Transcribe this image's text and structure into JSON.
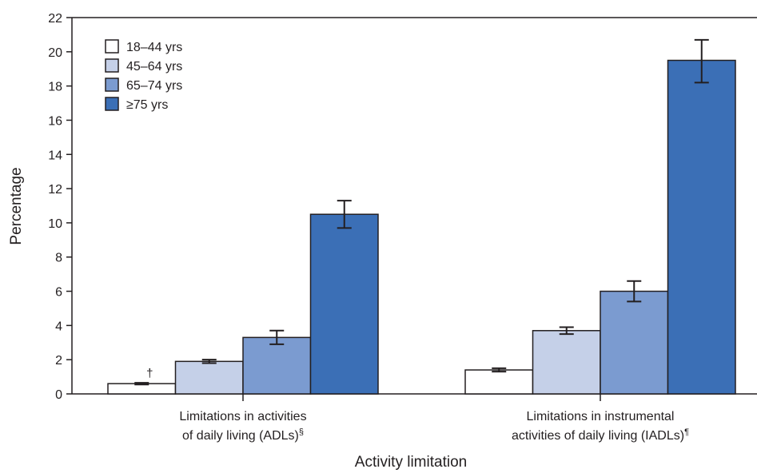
{
  "chart_data": {
    "type": "bar",
    "xlabel": "Activity limitation",
    "ylabel": "Percentage",
    "ylim": [
      0,
      22
    ],
    "yticks": [
      0,
      2,
      4,
      6,
      8,
      10,
      12,
      14,
      16,
      18,
      20,
      22
    ],
    "grid": false,
    "legend_position": "top-left",
    "categories": [
      {
        "line1": "Limitations in activities",
        "line2": "of daily living (ADLs)",
        "mark": "§"
      },
      {
        "line1": "Limitations in instrumental",
        "line2": "activities of daily living (IADLs)",
        "mark": "¶"
      }
    ],
    "series": [
      {
        "name": "18–44 yrs",
        "color": "#ffffff",
        "values": [
          0.6,
          1.4
        ],
        "ci": [
          [
            0.55,
            0.65
          ],
          [
            1.3,
            1.5
          ]
        ]
      },
      {
        "name": "45–64 yrs",
        "color": "#c5d0e8",
        "values": [
          1.9,
          3.7
        ],
        "ci": [
          [
            1.8,
            2.0
          ],
          [
            3.5,
            3.9
          ]
        ]
      },
      {
        "name": "65–74 yrs",
        "color": "#7b9bd0",
        "values": [
          3.3,
          6.0
        ],
        "ci": [
          [
            2.9,
            3.7
          ],
          [
            5.4,
            6.6
          ]
        ]
      },
      {
        "name": "≥75 yrs",
        "color": "#3b6fb6",
        "values": [
          10.5,
          19.5
        ],
        "ci": [
          [
            9.7,
            11.3
          ],
          [
            18.2,
            20.7
          ]
        ]
      }
    ],
    "annotations": [
      {
        "text": "†",
        "category": 0,
        "series": 0
      }
    ]
  }
}
